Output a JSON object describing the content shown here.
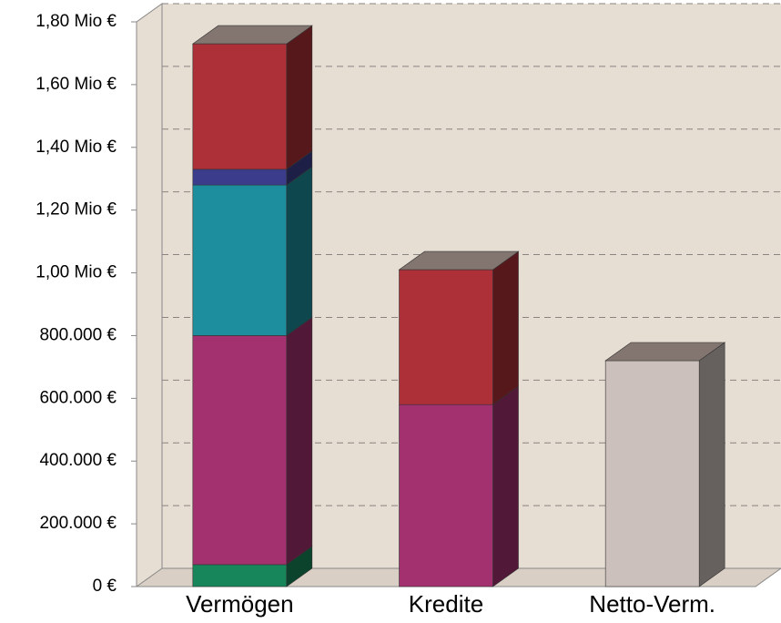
{
  "chart_data": {
    "type": "bar3d_stacked",
    "categories": [
      "Vermögen",
      "Kredite",
      "Netto-Verm."
    ],
    "series": [
      {
        "color": "#17865a",
        "values": [
          70000,
          null,
          null
        ]
      },
      {
        "color": "#a3306f",
        "values": [
          730000,
          580000,
          null
        ]
      },
      {
        "color": "#1d8e9e",
        "values": [
          480000,
          null,
          null
        ]
      },
      {
        "color": "#3b3d8c",
        "values": [
          50000,
          null,
          null
        ]
      },
      {
        "color": "#ad2f37",
        "values": [
          400000,
          430000,
          null
        ]
      },
      {
        "color": "#cbc0bc",
        "values": [
          null,
          null,
          720000
        ]
      }
    ],
    "ylim": [
      0,
      1800000
    ],
    "yticks": [
      {
        "value": 0,
        "label": "0 €"
      },
      {
        "value": 200000,
        "label": "200.000 €"
      },
      {
        "value": 400000,
        "label": "400.000 €"
      },
      {
        "value": 600000,
        "label": "600.000 €"
      },
      {
        "value": 800000,
        "label": "800.000 €"
      },
      {
        "value": 1000000,
        "label": "1,00 Mio €"
      },
      {
        "value": 1200000,
        "label": "1,20 Mio €"
      },
      {
        "value": 1400000,
        "label": "1,40 Mio €"
      },
      {
        "value": 1600000,
        "label": "1,60 Mio €"
      },
      {
        "value": 1800000,
        "label": "1,80 Mio €"
      }
    ],
    "grid": true
  }
}
